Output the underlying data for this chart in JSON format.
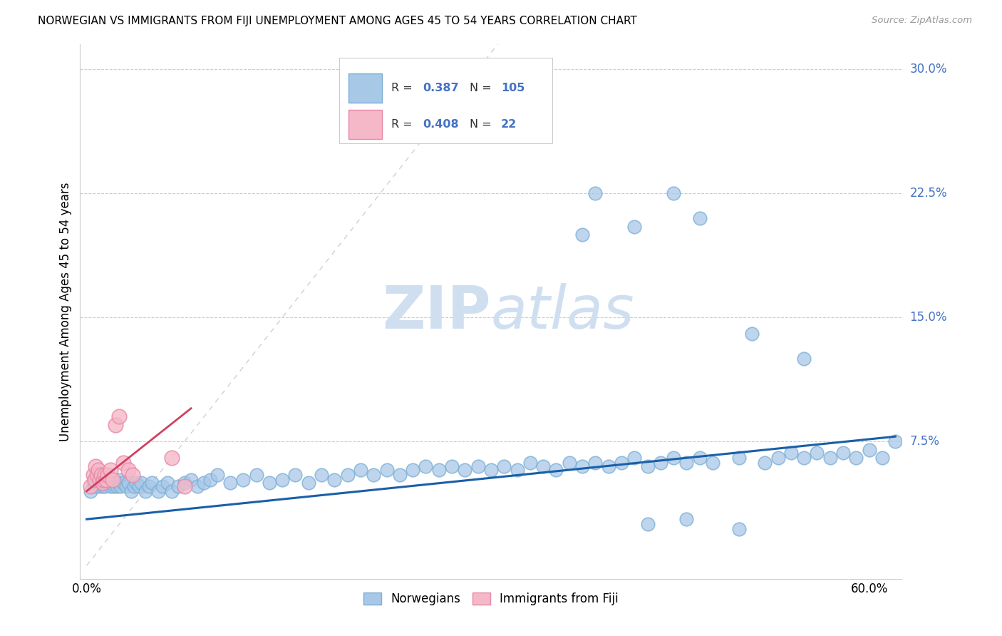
{
  "title": "NORWEGIAN VS IMMIGRANTS FROM FIJI UNEMPLOYMENT AMONG AGES 45 TO 54 YEARS CORRELATION CHART",
  "source": "Source: ZipAtlas.com",
  "ylabel": "Unemployment Among Ages 45 to 54 years",
  "norwegian_R": "0.387",
  "norwegian_N": "105",
  "fiji_R": "0.408",
  "fiji_N": "22",
  "xlim": [
    -0.005,
    0.625
  ],
  "ylim": [
    -0.008,
    0.315
  ],
  "ytick_vals": [
    0.075,
    0.15,
    0.225,
    0.3
  ],
  "ytick_labels": [
    "7.5%",
    "15.0%",
    "22.5%",
    "30.0%"
  ],
  "xtick_vals": [
    0.0,
    0.6
  ],
  "xtick_labels": [
    "0.0%",
    "60.0%"
  ],
  "norwegian_color": "#a8c8e8",
  "norwegian_edge_color": "#7aaed4",
  "fiji_color": "#f5b8c8",
  "fiji_edge_color": "#e888a8",
  "norwegian_line_color": "#1a5fa8",
  "fiji_line_color": "#d04060",
  "diag_color": "#d0d0d0",
  "watermark_color": "#d0dff0",
  "background_color": "#ffffff",
  "grid_color": "#cccccc",
  "norw_x": [
    0.003,
    0.005,
    0.006,
    0.007,
    0.008,
    0.009,
    0.01,
    0.011,
    0.012,
    0.013,
    0.014,
    0.015,
    0.016,
    0.017,
    0.018,
    0.019,
    0.02,
    0.021,
    0.022,
    0.023,
    0.024,
    0.025,
    0.026,
    0.028,
    0.03,
    0.032,
    0.034,
    0.036,
    0.038,
    0.04,
    0.042,
    0.045,
    0.048,
    0.05,
    0.055,
    0.058,
    0.062,
    0.065,
    0.07,
    0.075,
    0.08,
    0.085,
    0.09,
    0.095,
    0.1,
    0.11,
    0.12,
    0.13,
    0.14,
    0.15,
    0.16,
    0.17,
    0.18,
    0.19,
    0.2,
    0.21,
    0.22,
    0.23,
    0.24,
    0.25,
    0.26,
    0.27,
    0.28,
    0.29,
    0.3,
    0.31,
    0.32,
    0.33,
    0.34,
    0.35,
    0.36,
    0.37,
    0.38,
    0.39,
    0.4,
    0.41,
    0.42,
    0.43,
    0.44,
    0.45,
    0.46,
    0.47,
    0.48,
    0.5,
    0.52,
    0.53,
    0.54,
    0.55,
    0.56,
    0.57,
    0.58,
    0.59,
    0.6,
    0.61,
    0.62,
    0.43,
    0.46,
    0.5,
    0.38,
    0.42,
    0.51,
    0.47,
    0.55,
    0.39,
    0.45
  ],
  "norw_y": [
    0.045,
    0.05,
    0.048,
    0.052,
    0.05,
    0.048,
    0.052,
    0.05,
    0.048,
    0.05,
    0.048,
    0.05,
    0.052,
    0.05,
    0.048,
    0.05,
    0.052,
    0.048,
    0.05,
    0.048,
    0.05,
    0.052,
    0.048,
    0.05,
    0.048,
    0.05,
    0.045,
    0.048,
    0.05,
    0.048,
    0.05,
    0.045,
    0.048,
    0.05,
    0.045,
    0.048,
    0.05,
    0.045,
    0.048,
    0.05,
    0.052,
    0.048,
    0.05,
    0.052,
    0.055,
    0.05,
    0.052,
    0.055,
    0.05,
    0.052,
    0.055,
    0.05,
    0.055,
    0.052,
    0.055,
    0.058,
    0.055,
    0.058,
    0.055,
    0.058,
    0.06,
    0.058,
    0.06,
    0.058,
    0.06,
    0.058,
    0.06,
    0.058,
    0.062,
    0.06,
    0.058,
    0.062,
    0.06,
    0.062,
    0.06,
    0.062,
    0.065,
    0.06,
    0.062,
    0.065,
    0.062,
    0.065,
    0.062,
    0.065,
    0.062,
    0.065,
    0.068,
    0.065,
    0.068,
    0.065,
    0.068,
    0.065,
    0.07,
    0.065,
    0.075,
    0.025,
    0.028,
    0.022,
    0.2,
    0.205,
    0.14,
    0.21,
    0.125,
    0.225,
    0.225
  ],
  "fiji_x": [
    0.003,
    0.005,
    0.006,
    0.007,
    0.008,
    0.009,
    0.01,
    0.011,
    0.012,
    0.013,
    0.014,
    0.015,
    0.016,
    0.018,
    0.02,
    0.022,
    0.025,
    0.028,
    0.032,
    0.035,
    0.065,
    0.075
  ],
  "fiji_y": [
    0.048,
    0.055,
    0.052,
    0.06,
    0.055,
    0.058,
    0.052,
    0.055,
    0.05,
    0.052,
    0.055,
    0.052,
    0.055,
    0.058,
    0.052,
    0.085,
    0.09,
    0.062,
    0.058,
    0.055,
    0.065,
    0.048
  ],
  "norw_line_x0": 0.0,
  "norw_line_x1": 0.62,
  "norw_line_y0": 0.028,
  "norw_line_y1": 0.078,
  "fiji_line_x0": 0.0,
  "fiji_line_x1": 0.08,
  "fiji_line_y0": 0.045,
  "fiji_line_y1": 0.095
}
